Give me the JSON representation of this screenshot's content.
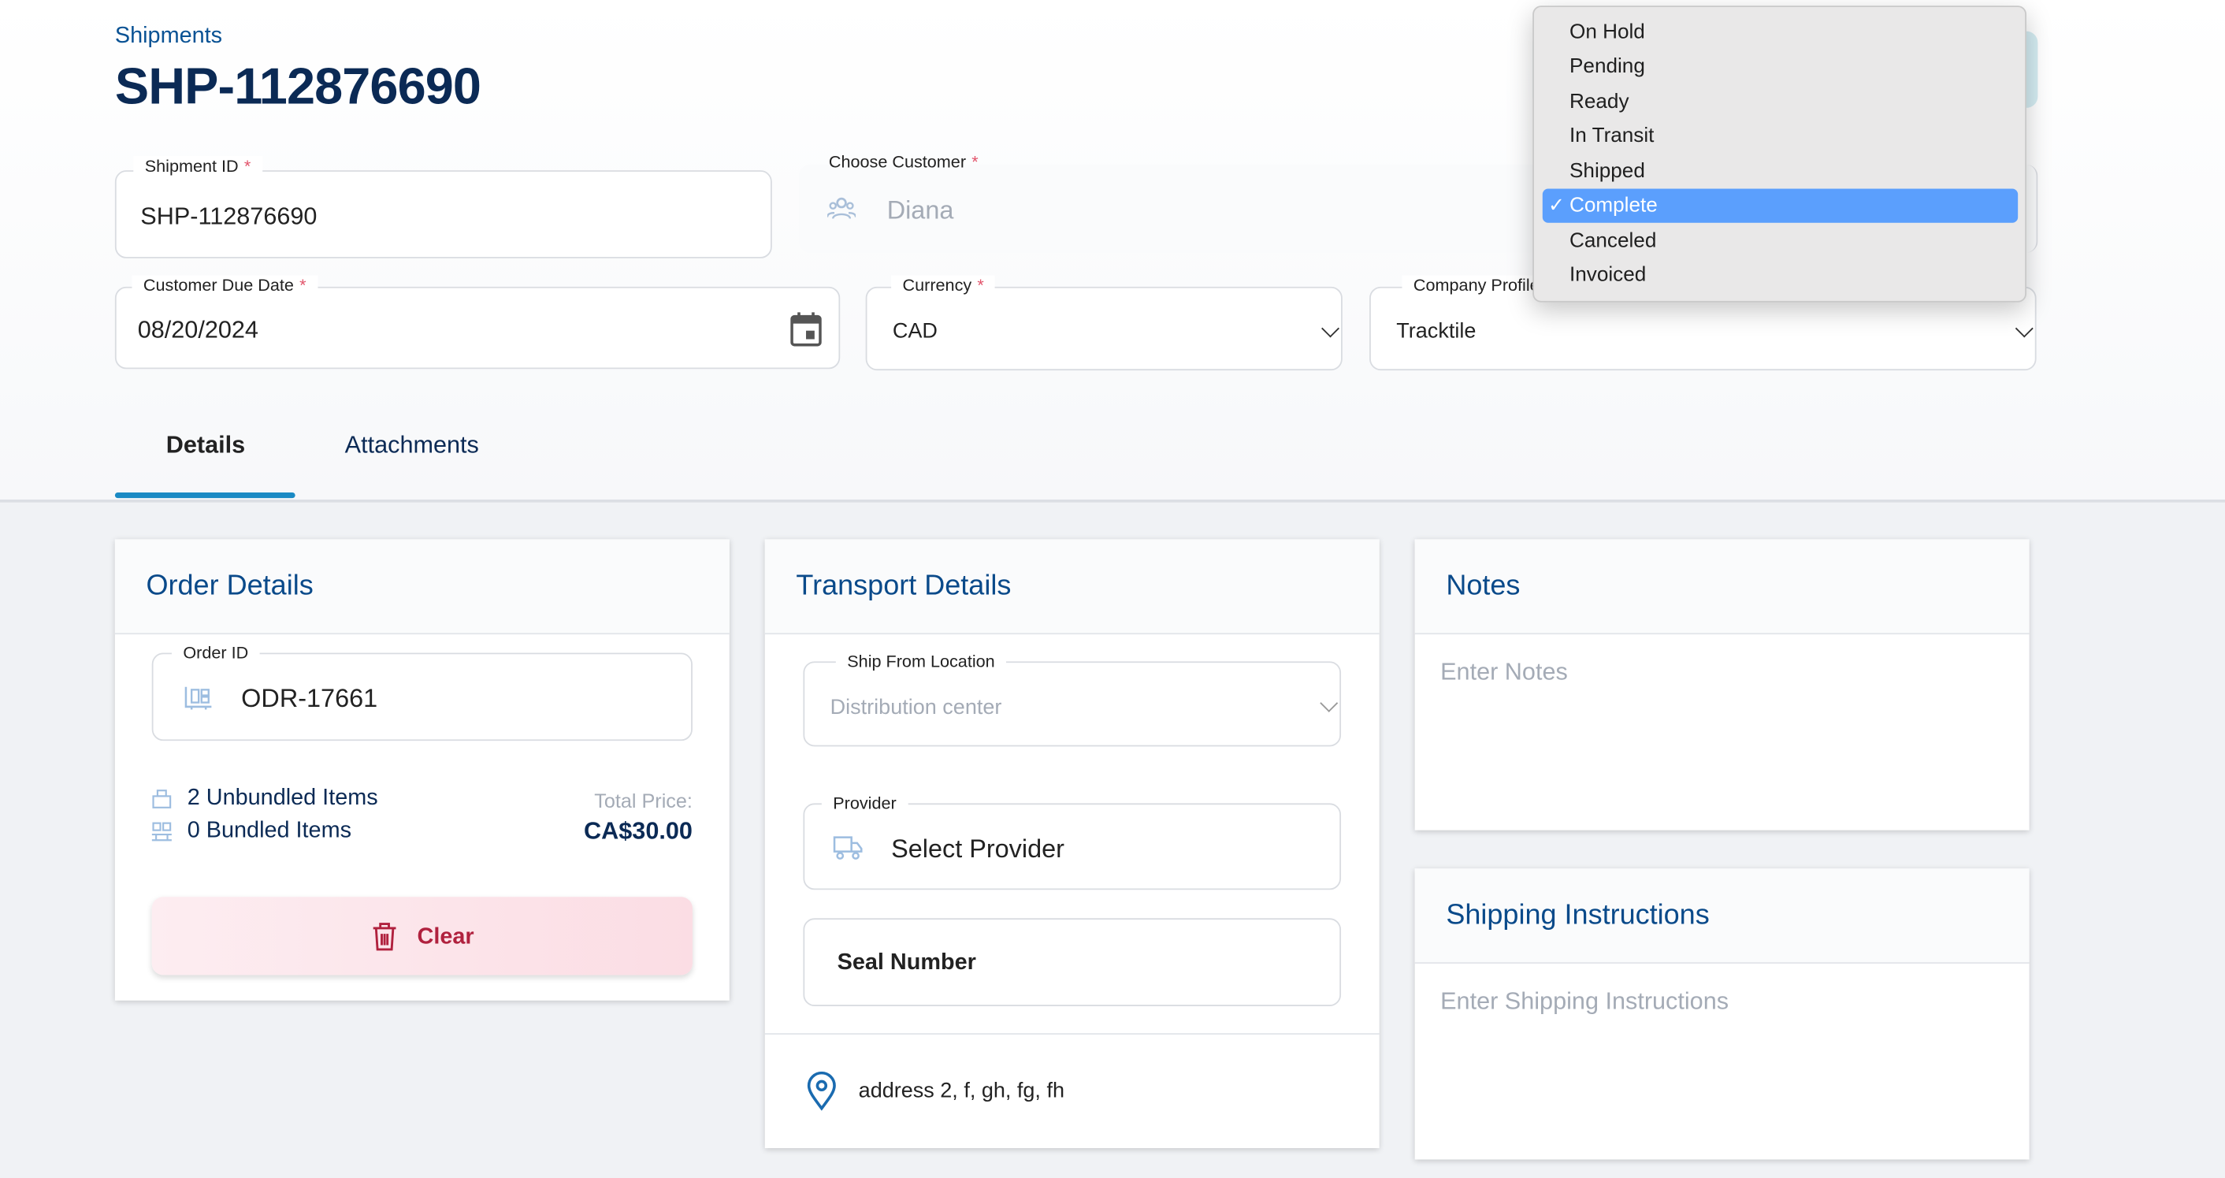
{
  "breadcrumb": "Shipments",
  "title": "SHP-112876690",
  "fields": {
    "shipment_id": {
      "label": "Shipment ID",
      "value": "SHP-112876690"
    },
    "customer": {
      "label": "Choose Customer",
      "value": "Diana"
    },
    "due_date": {
      "label": "Customer Due Date",
      "value": "08/20/2024"
    },
    "currency": {
      "label": "Currency",
      "value": "CAD"
    },
    "company_profile": {
      "label": "Company Profile",
      "value": "Tracktile"
    },
    "required_mark": "*"
  },
  "tabs": [
    {
      "label": "Details",
      "active": true
    },
    {
      "label": "Attachments",
      "active": false
    }
  ],
  "order": {
    "title": "Order Details",
    "order_id_label": "Order ID",
    "order_id": "ODR-17661",
    "unbundled": "2 Unbundled Items",
    "bundled": "0 Bundled Items",
    "total_label": "Total Price:",
    "total": "CA$30.00",
    "clear_label": "Clear"
  },
  "transport": {
    "title": "Transport Details",
    "ship_from_label": "Ship From Location",
    "ship_from_placeholder": "Distribution center",
    "provider_label": "Provider",
    "provider_placeholder": "Select Provider",
    "seal_label": "Seal Number",
    "address": "address 2, f, gh, fg, fh"
  },
  "notes": {
    "title": "Notes",
    "placeholder": "Enter Notes"
  },
  "shipping_instructions": {
    "title": "Shipping Instructions",
    "placeholder": "Enter Shipping Instructions"
  },
  "status_dropdown": {
    "options": [
      "On Hold",
      "Pending",
      "Ready",
      "In Transit",
      "Shipped",
      "Complete",
      "Canceled",
      "Invoiced"
    ],
    "selected": "Complete",
    "check": "✓"
  },
  "colors": {
    "accent": "#1a8ac4",
    "title": "#0b2a55",
    "danger": "#b0213e",
    "selection": "#5b9ffd"
  }
}
